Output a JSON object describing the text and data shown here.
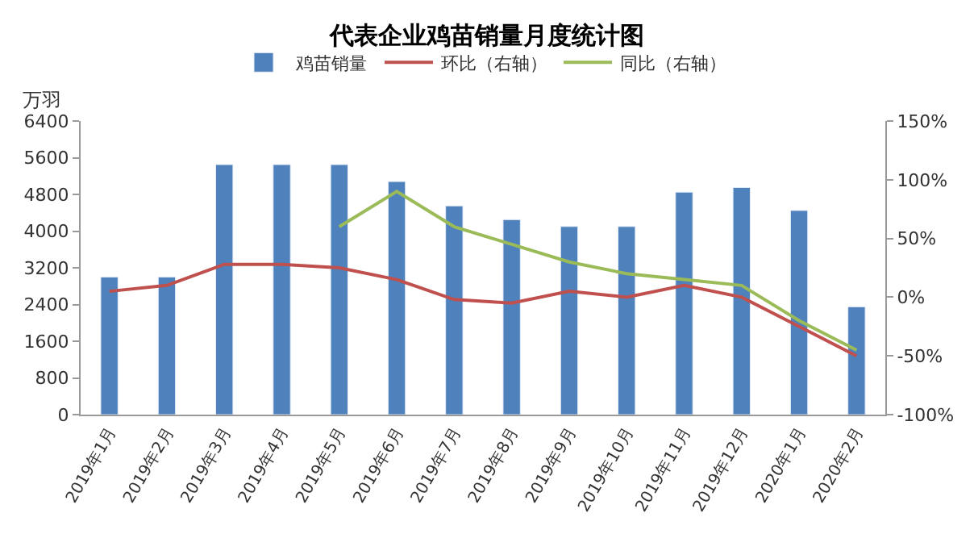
{
  "chart_data": {
    "type": "bar",
    "title": "代表企业鸡苗销量月度统计图",
    "ylabel": "万羽",
    "categories": [
      "2019年1月",
      "2019年2月",
      "2019年3月",
      "2019年4月",
      "2019年5月",
      "2019年6月",
      "2019年7月",
      "2019年8月",
      "2019年9月",
      "2019年10月",
      "2019年11月",
      "2019年12月",
      "2020年1月",
      "2020年2月"
    ],
    "series": [
      {
        "name": "鸡苗销量",
        "color": "#4f81bd",
        "values": [
          3000,
          3000,
          5450,
          5450,
          5450,
          5080,
          4550,
          4250,
          4100,
          4100,
          4850,
          4950,
          4450,
          2350
        ]
      },
      {
        "name": "环比（右轴）",
        "type": "line",
        "axis": "y2",
        "color": "#c0504d",
        "values": [
          5,
          10,
          28,
          28,
          25,
          15,
          -2,
          -5,
          5,
          0,
          10,
          0,
          -25,
          -50
        ]
      },
      {
        "name": "同比（右轴）",
        "type": "line",
        "axis": "y2",
        "color": "#9bbb59",
        "values": [
          null,
          null,
          null,
          null,
          60,
          90,
          60,
          45,
          30,
          20,
          15,
          10,
          -20,
          -45
        ]
      }
    ],
    "ylim": [
      0,
      6400
    ],
    "yticks": [
      0,
      800,
      1600,
      2400,
      3200,
      4000,
      4800,
      5600,
      6400
    ],
    "y2lim": [
      -100,
      150
    ],
    "y2ticks": [
      {
        "value": -100,
        "label": "-100%"
      },
      {
        "value": -50,
        "label": "-50%"
      },
      {
        "value": 0,
        "label": "0%"
      },
      {
        "value": 50,
        "label": "50%"
      },
      {
        "value": 100,
        "label": "100%"
      },
      {
        "value": 150,
        "label": "150%"
      }
    ],
    "legend": "top",
    "marker": "none"
  }
}
